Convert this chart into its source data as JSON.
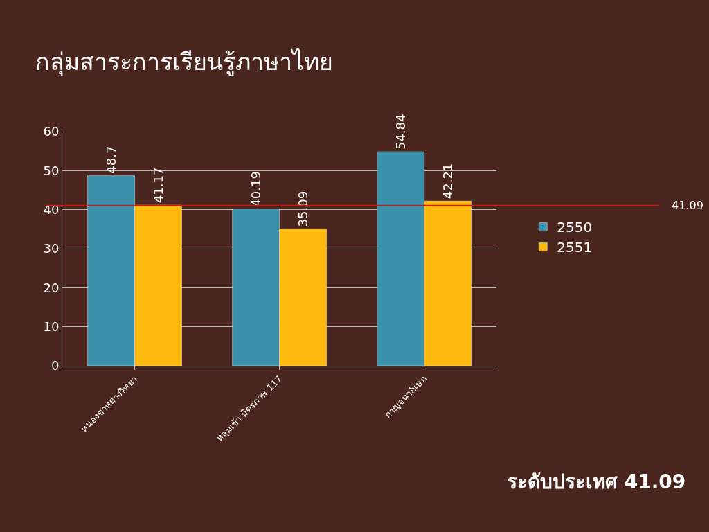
{
  "chart_data": {
    "type": "bar",
    "title": "กลุ่มสาระการเรียนรู้ภาษาไทย",
    "categories": [
      "หนองขาหย่างวิทยา",
      "หลุมเข้า มิตรภาพ 117",
      "กาญจนาภิเษก"
    ],
    "series": [
      {
        "name": "2550",
        "color": "#3a91ac",
        "values": [
          48.7,
          40.19,
          54.84
        ]
      },
      {
        "name": "2551",
        "color": "#ffb80c",
        "values": [
          41.17,
          35.09,
          42.21
        ]
      }
    ],
    "ylim": [
      0,
      60
    ],
    "yticks": [
      0,
      10,
      20,
      30,
      40,
      50,
      60
    ],
    "grid": "y",
    "legend": "right",
    "data_labels": true,
    "ref_lines": [
      {
        "axis": "y",
        "value": 41.09,
        "label": "41.09",
        "color": "#e01010"
      }
    ],
    "annotations": [
      "ระดับประเทศ 41.09"
    ]
  }
}
